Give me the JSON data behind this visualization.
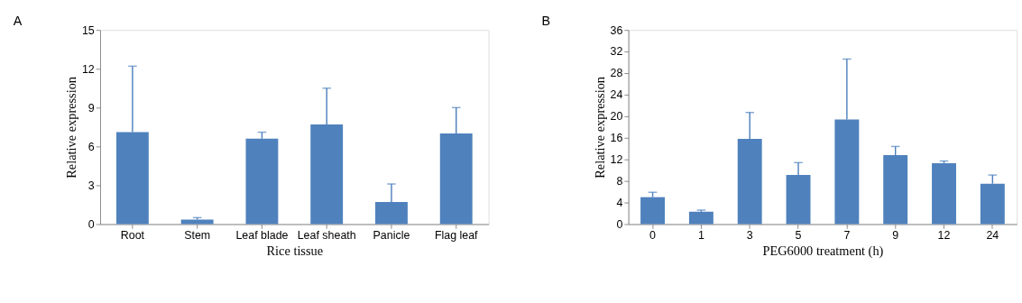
{
  "chart_data": [
    {
      "type": "bar",
      "title": "A",
      "xlabel": "Rice tissue",
      "ylabel": "Relative expression",
      "categories": [
        "Root",
        "Stem",
        "Leaf blade",
        "Leaf sheath",
        "Panicle",
        "Flag leaf"
      ],
      "values": [
        7.1,
        0.35,
        6.6,
        7.7,
        1.7,
        7.0
      ],
      "errors": [
        [
          7.1,
          12.2
        ],
        [
          0.35,
          0.5
        ],
        [
          6.6,
          7.1
        ],
        [
          7.7,
          10.5
        ],
        [
          1.7,
          3.1
        ],
        [
          7.0,
          9.0
        ]
      ],
      "color": "#4f81bd",
      "ylim": [
        0,
        15
      ],
      "yticks": [
        0,
        3,
        6,
        9,
        12,
        15
      ],
      "grid": false
    },
    {
      "type": "bar",
      "title": "B",
      "xlabel": "PEG6000 treatment (h)",
      "ylabel": "Relative expression",
      "categories": [
        "0",
        "1",
        "3",
        "5",
        "7",
        "9",
        "12",
        "24"
      ],
      "values": [
        5.0,
        2.3,
        15.8,
        9.1,
        19.4,
        12.8,
        11.3,
        7.5
      ],
      "errors": [
        [
          5.0,
          5.9
        ],
        [
          2.3,
          2.6
        ],
        [
          15.8,
          20.7
        ],
        [
          9.1,
          11.4
        ],
        [
          19.4,
          30.6
        ],
        [
          12.8,
          14.4
        ],
        [
          11.3,
          11.7
        ],
        [
          7.5,
          9.1
        ]
      ],
      "color": "#4f81bd",
      "ylim": [
        0,
        36
      ],
      "yticks": [
        0,
        4,
        8,
        12,
        16,
        20,
        24,
        28,
        32,
        36
      ],
      "grid": false
    }
  ]
}
